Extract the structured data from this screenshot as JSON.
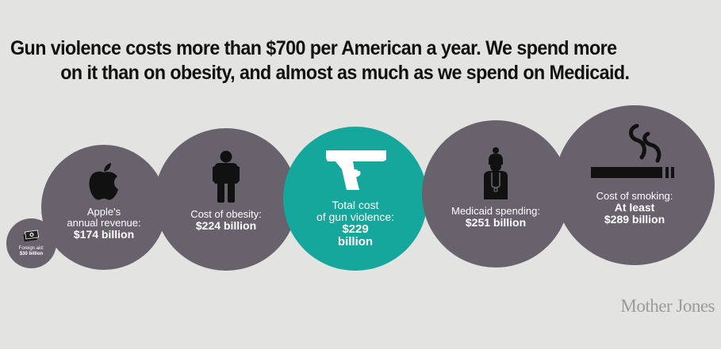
{
  "title_line1": "Gun violence costs more than $700 per American a year. We spend more",
  "title_line2": "on it than on obesity, and almost as much as we spend on Medicaid.",
  "chart_data": {
    "type": "bubble",
    "unit": "billion USD",
    "items": [
      {
        "label": "Foreign aid:",
        "value_text": "$30 billion",
        "value": 30,
        "icon": "cash-icon",
        "color": "#67626c"
      },
      {
        "label": "Apple's annual revenue:",
        "value_text": "$174 billion",
        "value": 174,
        "icon": "apple-icon",
        "color": "#67626c"
      },
      {
        "label": "Cost of obesity:",
        "value_text": "$224 billion",
        "value": 224,
        "icon": "person-icon",
        "color": "#67626c"
      },
      {
        "label": "Total cost of gun violence:",
        "value_text": "$229 billion",
        "value": 229,
        "icon": "handgun-icon",
        "color": "#15a79b"
      },
      {
        "label": "Medicaid spending:",
        "value_text": "$251 billion",
        "value": 251,
        "icon": "nurse-icon",
        "color": "#67626c"
      },
      {
        "label": "Cost of smoking:",
        "value_text": "At least $289 billion",
        "value": 289,
        "icon": "cigarette-icon",
        "color": "#67626c"
      }
    ]
  },
  "labels": {
    "foreign_1": "Foreign aid:",
    "foreign_2": "$30 billion",
    "apple_1": "Apple's",
    "apple_2": "annual revenue:",
    "apple_3": "$174 billion",
    "obesity_1": "Cost of obesity:",
    "obesity_2": "$224 billion",
    "gun_1": "Total cost",
    "gun_2": "of gun violence:",
    "gun_3": "$229",
    "gun_4": "billion",
    "medicaid_1": "Medicaid spending:",
    "medicaid_2": "$251 billion",
    "smoking_1": "Cost of smoking:",
    "smoking_2": "At least",
    "smoking_3": "$289 billion"
  },
  "source": "Mother Jones"
}
